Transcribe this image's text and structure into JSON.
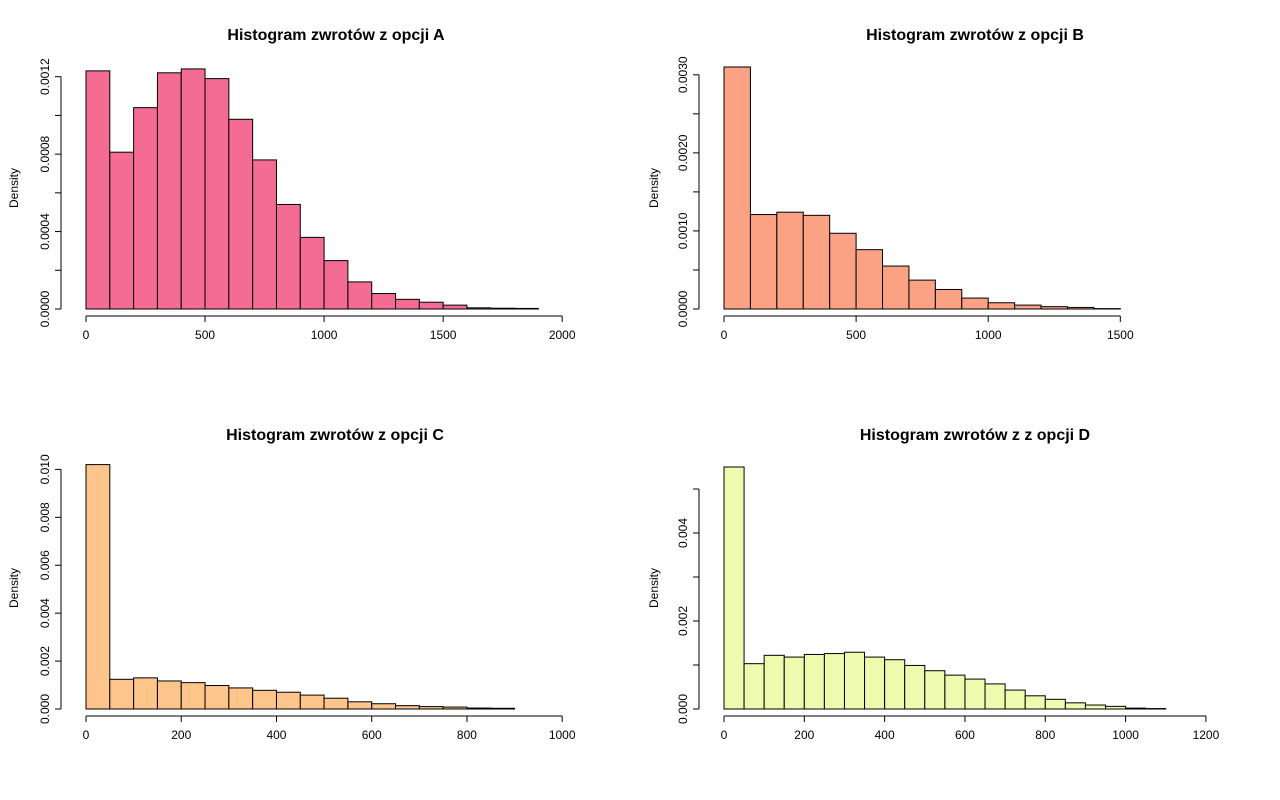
{
  "chart_data": [
    {
      "type": "bar",
      "title": "Histogram zwrotów z opcji A",
      "xlabel": "",
      "ylabel": "Density",
      "fill": "#f46b93",
      "xlim": [
        0,
        2100
      ],
      "ylim": [
        0,
        0.00125
      ],
      "bin_width": 100,
      "bin_start": 0,
      "x_ticks": [
        0,
        500,
        1000,
        1500,
        2000
      ],
      "x_tick_labels": [
        "0",
        "500",
        "1000",
        "1500",
        "2000"
      ],
      "y_ticks": [
        0,
        0.0004,
        0.0008,
        0.0012
      ],
      "y_tick_labels": [
        "0.0000",
        "0.0004",
        "0.0008",
        "0.0012"
      ],
      "y_minor_ticks": [
        0.0002,
        0.0006,
        0.001
      ],
      "values": [
        0.00123,
        0.00081,
        0.00104,
        0.00122,
        0.00124,
        0.00119,
        0.00098,
        0.00077,
        0.00054,
        0.00037,
        0.00025,
        0.00014,
        8e-05,
        5e-05,
        3.5e-05,
        2e-05,
        6e-06,
        4e-06,
        3e-06
      ]
    },
    {
      "type": "bar",
      "title": "Histogram zwrotów z opcji B",
      "xlabel": "",
      "ylabel": "Density",
      "fill": "#fba184",
      "xlim": [
        0,
        1900
      ],
      "ylim": [
        0,
        0.0031
      ],
      "bin_width": 100,
      "bin_start": 0,
      "x_ticks": [
        0,
        500,
        1000,
        1500
      ],
      "x_tick_labels": [
        "0",
        "500",
        "1000",
        "1500"
      ],
      "y_ticks": [
        0,
        0.001,
        0.002,
        0.003
      ],
      "y_tick_labels": [
        "0.0000",
        "0.0010",
        "0.0020",
        "0.0030"
      ],
      "y_minor_ticks": [
        0.0005,
        0.0015,
        0.0025
      ],
      "values": [
        0.0031,
        0.00121,
        0.00124,
        0.0012,
        0.00097,
        0.00076,
        0.00055,
        0.00037,
        0.00025,
        0.00014,
        8e-05,
        5e-05,
        3e-05,
        2e-05,
        5e-06
      ]
    },
    {
      "type": "bar",
      "title": "Histogram zwrotów z opcji C",
      "xlabel": "",
      "ylabel": "Density",
      "fill": "#fdc48b",
      "xlim": [
        0,
        1050
      ],
      "ylim": [
        0,
        0.0101
      ],
      "bin_width": 50,
      "bin_start": 0,
      "x_ticks": [
        0,
        200,
        400,
        600,
        800,
        1000
      ],
      "x_tick_labels": [
        "0",
        "200",
        "400",
        "600",
        "800",
        "1000"
      ],
      "y_ticks": [
        0,
        0.002,
        0.004,
        0.006,
        0.008,
        0.01
      ],
      "y_tick_labels": [
        "0.000",
        "0.002",
        "0.004",
        "0.006",
        "0.008",
        "0.010"
      ],
      "y_minor_ticks": [],
      "values": [
        0.0102,
        0.00124,
        0.0013,
        0.00117,
        0.0011,
        0.00098,
        0.00088,
        0.00078,
        0.0007,
        0.00058,
        0.00045,
        0.0003,
        0.00022,
        0.00014,
        0.0001,
        8e-05,
        4e-05,
        3e-05
      ]
    },
    {
      "type": "bar",
      "title": "Histogram zwrotów z z opcji D",
      "xlabel": "",
      "ylabel": "Density",
      "fill": "#eefaad",
      "xlim": [
        0,
        1250
      ],
      "ylim": [
        0,
        0.0055
      ],
      "bin_width": 50,
      "bin_start": 0,
      "x_ticks": [
        0,
        200,
        400,
        600,
        800,
        1000,
        1200
      ],
      "x_tick_labels": [
        "0",
        "200",
        "400",
        "600",
        "800",
        "1000",
        "1200"
      ],
      "y_ticks": [
        0,
        0.002,
        0.004
      ],
      "y_tick_labels": [
        "0.000",
        "0.002",
        "0.004"
      ],
      "y_minor_ticks": [
        0.001,
        0.003,
        0.005
      ],
      "values": [
        0.0055,
        0.00103,
        0.00122,
        0.00118,
        0.00124,
        0.00126,
        0.00129,
        0.00118,
        0.00112,
        0.00099,
        0.00087,
        0.00077,
        0.00068,
        0.00057,
        0.00043,
        0.0003,
        0.00022,
        0.00014,
        9e-05,
        6e-05,
        2e-05,
        1e-05
      ]
    }
  ]
}
